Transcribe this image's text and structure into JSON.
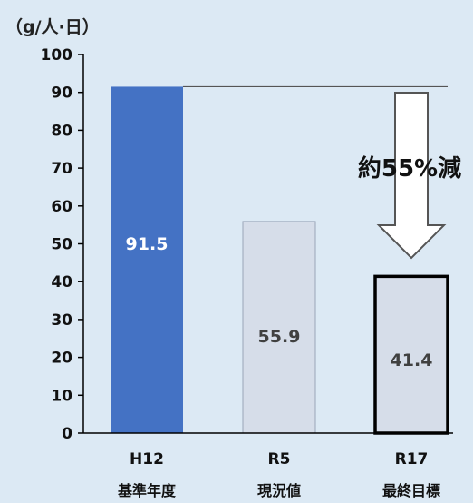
{
  "chart_data": {
    "type": "bar",
    "unit_label": "（g/人·日）",
    "categories": [
      "H12",
      "R5",
      "R17"
    ],
    "subcategories": [
      "基準年度",
      "現況値",
      "最終目標"
    ],
    "values": [
      91.5,
      55.9,
      41.4
    ],
    "data_labels": [
      "91.5",
      "55.9",
      "41.4"
    ],
    "ylim": [
      0,
      100
    ],
    "yticks": [
      0,
      10,
      20,
      30,
      40,
      50,
      60,
      70,
      80,
      90,
      100
    ],
    "grid": false,
    "reference_line_value": 91.5,
    "annotation": "約55%減",
    "colors": {
      "background": "#dce9f4",
      "bar_base": "#4472c4",
      "bar_current": "#d6dde9",
      "bar_target": "#d6dde9",
      "bar_target_border": "#000000",
      "label_dark": "#404040",
      "label_light": "#ffffff",
      "arrow_fill": "#ffffff",
      "arrow_stroke": "#555555",
      "axis": "#000000"
    }
  }
}
